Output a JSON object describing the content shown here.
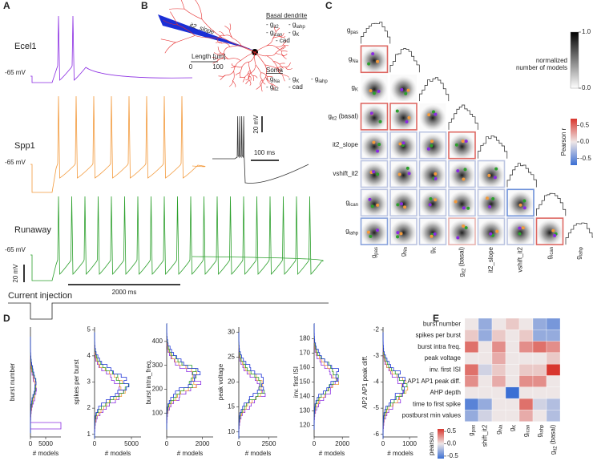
{
  "panel_a": {
    "label": "A",
    "traces": [
      {
        "name": "Ecel1",
        "color": "#8a2be2",
        "rest": "-65 mV"
      },
      {
        "name": "Spp1",
        "color": "#f39a3c",
        "rest": "-65 mV"
      },
      {
        "name": "Runaway",
        "color": "#2ca02c",
        "rest": "-65 mV"
      }
    ],
    "voltage_scale": "20 mV",
    "time_scale": "2000 ms",
    "current_injection": "Current injection"
  },
  "panel_b": {
    "label": "B",
    "arrow_label": "it2_slope",
    "basal_dendrite": {
      "title": "Basal dendrite",
      "items": [
        [
          {
            "base": "- g",
            "sub": "it2"
          },
          {
            "base": "- g",
            "sub": "iahp"
          }
        ],
        [
          {
            "base": "- g",
            "sub": "ican"
          },
          {
            "base": "- g",
            "sub": "K"
          }
        ],
        [
          {
            "base": "- cad"
          }
        ]
      ]
    },
    "soma": {
      "title": "Soma",
      "items": [
        [
          {
            "base": "- g",
            "sub": "Na"
          },
          {
            "base": "- g",
            "sub": "K"
          },
          {
            "base": "- g",
            "sub": "iahp"
          }
        ],
        [
          {
            "base": "- g",
            "sub": "it2"
          },
          {
            "base": "- cad"
          }
        ]
      ]
    },
    "length_label": "Length [µm]",
    "length_ticks": [
      0,
      100
    ],
    "inset_voltage_scale": "20 mV",
    "inset_time_scale": "100 ms"
  },
  "panel_c": {
    "label": "C",
    "parameters": [
      {
        "base": "g",
        "sub": "pas"
      },
      {
        "base": "g",
        "sub": "Na"
      },
      {
        "base": "g",
        "sub": "K"
      },
      {
        "base": "g",
        "sub": "it2",
        "suffix": " (basal)"
      },
      {
        "base": "it2_slope"
      },
      {
        "base": "vshift_it2"
      },
      {
        "base": "g",
        "sub": "ican"
      },
      {
        "base": "g",
        "sub": "iahp"
      }
    ],
    "pearson_r": [
      [
        0.5
      ],
      [
        0,
        0
      ],
      [
        0.5,
        0.5,
        0
      ],
      [
        -0.2,
        -0.2,
        -0.2,
        0.5
      ],
      [
        -0.2,
        -0.2,
        -0.2,
        -0.2,
        -0.2
      ],
      [
        -0.2,
        -0.2,
        -0.2,
        -0.2,
        -0.2,
        -0.5
      ],
      [
        -0.4,
        -0.2,
        -0.2,
        0.2,
        -0.2,
        -0.2,
        0.5
      ]
    ],
    "density_colorbar": {
      "label": [
        "normalized",
        "number of models"
      ],
      "lim": [
        0,
        1
      ],
      "ticks": [
        {
          "value": 1,
          "label": "1.0"
        },
        {
          "value": 0,
          "label": "0.0"
        }
      ]
    },
    "pearson_colorbar": {
      "label": "Pearson r",
      "lim": [
        -0.7,
        0.7
      ],
      "ticks": [
        0.5,
        {
          "value": 0,
          "label": "0.0"
        },
        -0.5
      ]
    }
  },
  "panel_d": {
    "label": "D",
    "xlabel": "# models",
    "plots": [
      {
        "ylabel": "burst number",
        "xlim": [
          0,
          10000
        ],
        "xticks": [
          0,
          5000
        ]
      },
      {
        "ylabel": "spikes per burst",
        "ylim": [
          0.9,
          5.1
        ],
        "yticks": [
          1,
          2,
          3,
          4,
          5
        ],
        "xlim": [
          0,
          6300
        ],
        "xticks": [
          0,
          5000
        ]
      },
      {
        "ylabel": "burst intra_freq.",
        "ylim": [
          0,
          460
        ],
        "yticks": [
          100,
          200,
          300,
          400
        ],
        "xlim": [
          0,
          2600
        ],
        "xticks": [
          0,
          2000
        ]
      },
      {
        "ylabel": "peak voltage",
        "ylim": [
          9,
          31
        ],
        "yticks": [
          10,
          15,
          20,
          25,
          30
        ],
        "xlim": [
          0,
          3200
        ],
        "xticks": [
          0,
          2500
        ]
      },
      {
        "ylabel": "inv. first ISI",
        "ylim": [
          112,
          188
        ],
        "yticks": [
          120,
          130,
          140,
          150,
          160,
          170,
          180
        ],
        "xlim": [
          0,
          2500
        ],
        "xticks": [
          0,
          2000
        ]
      },
      {
        "ylabel": "AP2 AP1 peak diff.",
        "ylim": [
          -6.1,
          -1.9
        ],
        "yticks": [
          -6,
          -5,
          -4,
          -3,
          -2
        ],
        "xlim": [
          0,
          1300
        ],
        "xticks": [
          0,
          1000
        ]
      }
    ]
  },
  "panel_e": {
    "label": "E",
    "features": [
      "burst number",
      "spikes per burst",
      "burst intra freq.",
      "peak voltage",
      "inv. first ISI",
      "AP1 AP1 peak diff.",
      "AHP depth",
      "time to first spike",
      "postburst min values"
    ],
    "parameters": [
      {
        "base": "g",
        "sub": "pas"
      },
      {
        "base": "shift_it2"
      },
      {
        "base": "g",
        "sub": "Na"
      },
      {
        "base": "g",
        "sub": "K"
      },
      {
        "base": "g",
        "sub": "ican"
      },
      {
        "base": "g",
        "sub": "iahp"
      },
      {
        "base": "g",
        "sub": "it2",
        "suffix": " (basal)"
      }
    ],
    "pearson": [
      [
        0,
        -0.3,
        0,
        0.1,
        0,
        -0.3,
        -0.4
      ],
      [
        0.1,
        -0.3,
        0.1,
        0,
        0.1,
        -0.3,
        -0.3
      ],
      [
        0.4,
        0,
        0.3,
        0,
        0.3,
        0.4,
        0.3
      ],
      [
        0,
        0,
        0.2,
        0,
        0,
        0,
        0.1
      ],
      [
        0.4,
        -0.1,
        0.1,
        0,
        0.1,
        0.1,
        0.6
      ],
      [
        0.3,
        0,
        0.2,
        0,
        0.3,
        0.3,
        0
      ],
      [
        0,
        0,
        0,
        -0.6,
        0,
        0,
        0
      ],
      [
        -0.5,
        -0.3,
        0,
        0,
        0.4,
        -0.1,
        -0.2
      ],
      [
        -0.3,
        -0.1,
        0,
        0,
        0.2,
        0,
        -0.2
      ]
    ],
    "colorbar": {
      "label": "pearson",
      "lim": [
        -0.6,
        0.6
      ],
      "ticks": [
        0.5,
        {
          "value": 0,
          "label": "0.0"
        },
        -0.5
      ]
    }
  }
}
